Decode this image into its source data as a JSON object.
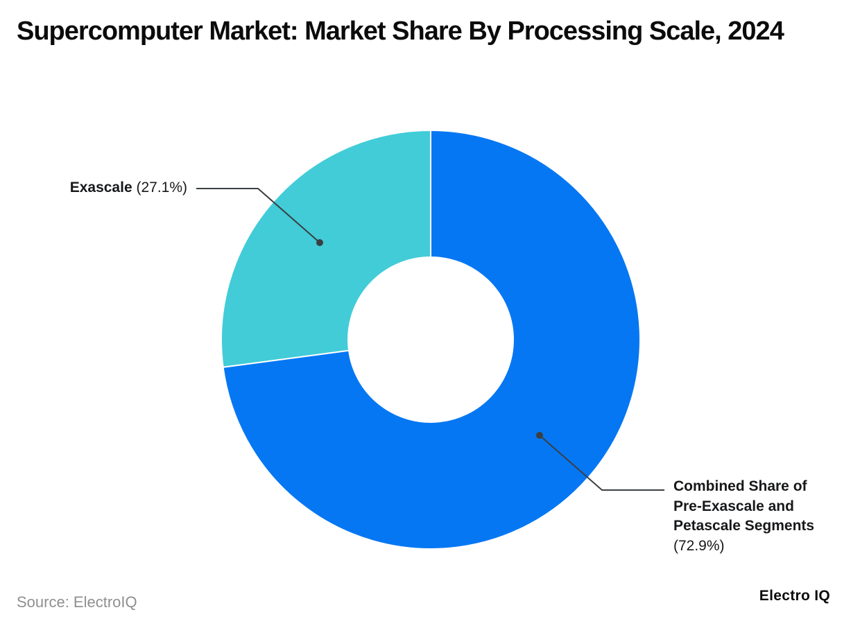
{
  "page": {
    "title": "Supercomputer Market: Market Share By Processing Scale, 2024",
    "source": "Source: ElectroIQ",
    "brand": "Electro IQ"
  },
  "chart_data": {
    "type": "pie",
    "subtype": "donut",
    "title": "Supercomputer Market: Market Share By Processing Scale, 2024",
    "series": [
      {
        "label": "Combined Share of Pre-Exascale and Petascale Segments",
        "value": 72.9,
        "color": "#0677f3"
      },
      {
        "label": "Exascale",
        "value": 27.1,
        "color": "#41ccd8"
      }
    ],
    "start_angle_deg": -90,
    "direction": "clockwise",
    "inner_radius_ratio": 0.394,
    "legend": "none",
    "data_labels": "callout",
    "slice_separator_color": "#ffffff"
  },
  "callouts": {
    "exascale": {
      "name": "Exascale",
      "value_text": "(27.1%)"
    },
    "combined": {
      "lines": [
        "Combined Share of",
        "Pre-Exascale and",
        "Petascale Segments"
      ],
      "value_text": "(72.9%)"
    }
  },
  "colors": {
    "blue": "#0677f3",
    "teal": "#41ccd8",
    "leader_line": "#3b3f42",
    "text": "#17181a",
    "source_gray": "#8f8f8f"
  }
}
